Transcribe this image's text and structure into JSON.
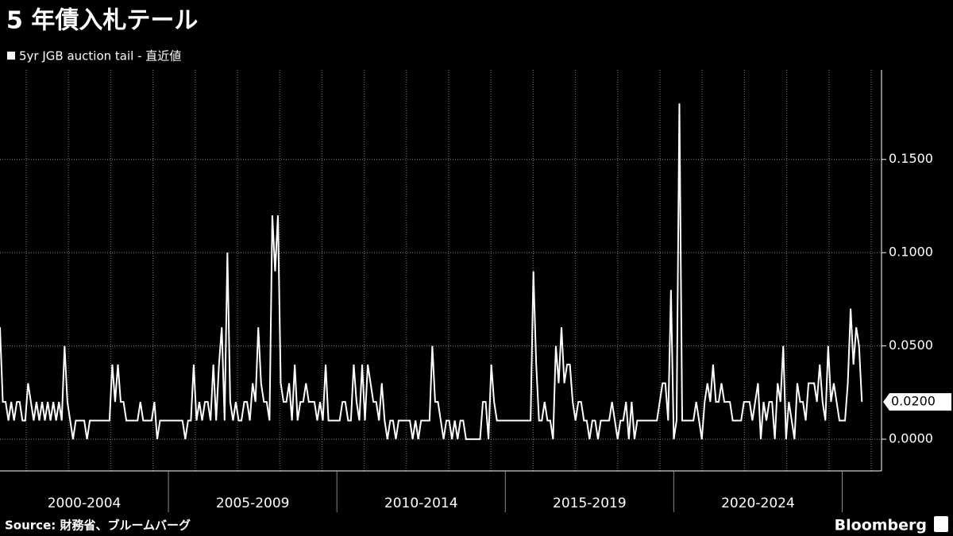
{
  "chart_data": {
    "type": "line",
    "title": "5 年債入札テール",
    "series": [
      {
        "name": "5yr JGB auction tail - 直近値",
        "color": "#ffffff",
        "values": [
          0.06,
          0.02,
          0.02,
          0.01,
          0.02,
          0.01,
          0.02,
          0.02,
          0.01,
          0.01,
          0.03,
          0.02,
          0.01,
          0.02,
          0.01,
          0.02,
          0.01,
          0.02,
          0.01,
          0.02,
          0.01,
          0.02,
          0.01,
          0.05,
          0.02,
          0.01,
          0,
          0.01,
          0.01,
          0.01,
          0.01,
          0,
          0.01,
          0.01,
          0.01,
          0.01,
          0.01,
          0.01,
          0.01,
          0.01,
          0.04,
          0.02,
          0.04,
          0.02,
          0.02,
          0.01,
          0.01,
          0.01,
          0.01,
          0.01,
          0.02,
          0.01,
          0.01,
          0.01,
          0.01,
          0.02,
          0,
          0.01,
          0.01,
          0.01,
          0.01,
          0.01,
          0.01,
          0.01,
          0.01,
          0.01,
          0,
          0.01,
          0.01,
          0.04,
          0.01,
          0.02,
          0.01,
          0.02,
          0.02,
          0.01,
          0.04,
          0.01,
          0.04,
          0.06,
          0.01,
          0.1,
          0.02,
          0.01,
          0.02,
          0.01,
          0.01,
          0.02,
          0.02,
          0.01,
          0.03,
          0.02,
          0.06,
          0.03,
          0.02,
          0.02,
          0.01,
          0.12,
          0.09,
          0.12,
          0.03,
          0.02,
          0.02,
          0.03,
          0.01,
          0.04,
          0.01,
          0.02,
          0.02,
          0.03,
          0.02,
          0.02,
          0.02,
          0.01,
          0.02,
          0.01,
          0.04,
          0.01,
          0.01,
          0.01,
          0.01,
          0.01,
          0.02,
          0.02,
          0.01,
          0.01,
          0.04,
          0.02,
          0.01,
          0.04,
          0.01,
          0.04,
          0.03,
          0.02,
          0.02,
          0.01,
          0.03,
          0.01,
          0,
          0.01,
          0.01,
          0,
          0.01,
          0.01,
          0.01,
          0.01,
          0.01,
          0,
          0.01,
          0,
          0.01,
          0.01,
          0.01,
          0.01,
          0.05,
          0.02,
          0.02,
          0.01,
          0,
          0.01,
          0.01,
          0,
          0.01,
          0,
          0.01,
          0.01,
          0,
          0,
          0,
          0,
          0,
          0,
          0.02,
          0.02,
          0,
          0.04,
          0.02,
          0.01,
          0.01,
          0.01,
          0.01,
          0.01,
          0.01,
          0.01,
          0.01,
          0.01,
          0.01,
          0.01,
          0.01,
          0.01,
          0.09,
          0.04,
          0.01,
          0.01,
          0.02,
          0.01,
          0.01,
          0,
          0.05,
          0.03,
          0.06,
          0.03,
          0.04,
          0.04,
          0.02,
          0.01,
          0.02,
          0.02,
          0.01,
          0.01,
          0,
          0.01,
          0.01,
          0,
          0.01,
          0.01,
          0.01,
          0.01,
          0.02,
          0.01,
          0,
          0.01,
          0.01,
          0.02,
          0,
          0.02,
          0,
          0.01,
          0.01,
          0.01,
          0.01,
          0.01,
          0.01,
          0.01,
          0.01,
          0.02,
          0.03,
          0.03,
          0.01,
          0.08,
          0,
          0.01,
          0.18,
          0.01,
          0.01,
          0.01,
          0.01,
          0.01,
          0.02,
          0.01,
          0,
          0.02,
          0.03,
          0.02,
          0.04,
          0.02,
          0.02,
          0.03,
          0.02,
          0.02,
          0.02,
          0.01,
          0.01,
          0.01,
          0.01,
          0.02,
          0.02,
          0.02,
          0.01,
          0.02,
          0.03,
          0,
          0.02,
          0.01,
          0.02,
          0.02,
          0,
          0.03,
          0.02,
          0.05,
          0,
          0.02,
          0.01,
          0,
          0.03,
          0.02,
          0.02,
          0.01,
          0.03,
          0.03,
          0.03,
          0.02,
          0.04,
          0.02,
          0.01,
          0.05,
          0.02,
          0.03,
          0.02,
          0.01,
          0.01,
          0.01,
          0.03,
          0.07,
          0.04,
          0.06,
          0.05,
          0.02
        ]
      }
    ],
    "periods": [
      "2000-2004",
      "2005-2009",
      "2010-2014",
      "2015-2019",
      "2020-2024"
    ],
    "latest_label": "0.0200",
    "ylim": [
      -0.017,
      0.198
    ],
    "yticks": [
      {
        "value": 0,
        "label": "0.0000"
      },
      {
        "value": 0.05,
        "label": "0.0500"
      },
      {
        "value": 0.1,
        "label": "0.1000"
      },
      {
        "value": 0.15,
        "label": "0.1500"
      }
    ],
    "grid": true,
    "source": "Source: 財務省、ブルームバーグ",
    "brand": "Bloomberg"
  }
}
